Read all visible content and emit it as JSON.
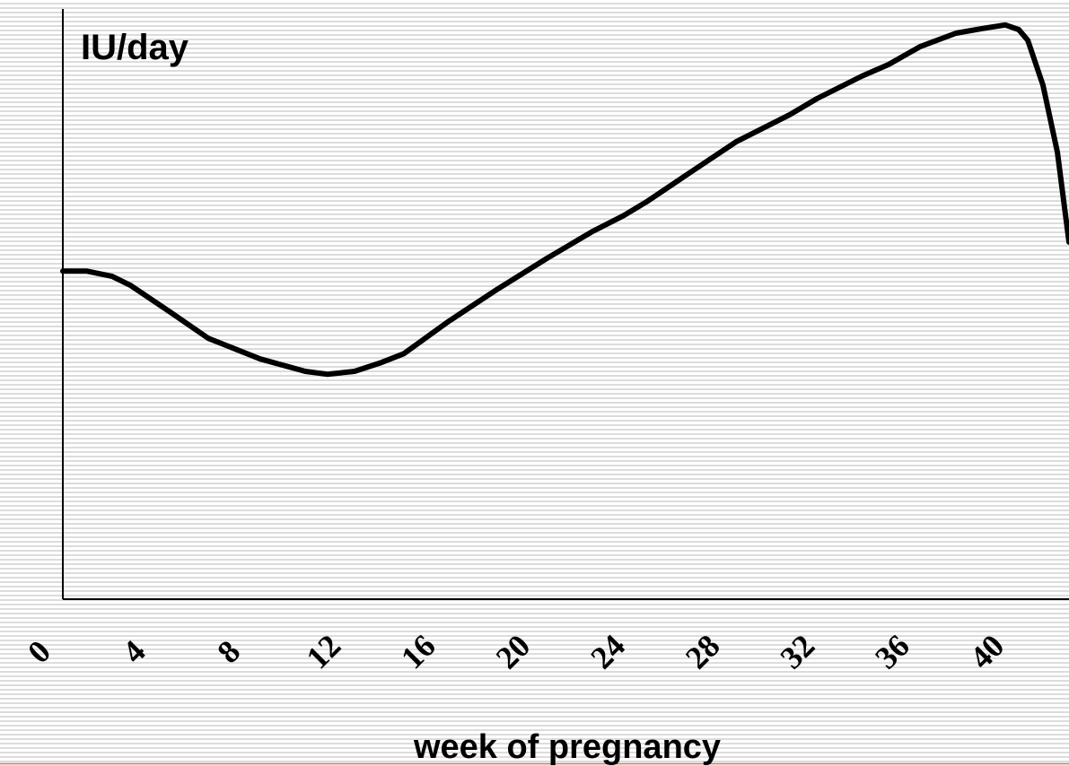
{
  "chart_data": {
    "type": "line",
    "title": "IU/day",
    "x_label": "week of pregnancy",
    "x": [
      0,
      1,
      2.08,
      2.84,
      4.55,
      6.14,
      8.33,
      10.23,
      11.17,
      12.31,
      13.45,
      14.39,
      15.15,
      16.29,
      18.37,
      20.45,
      22.35,
      23.67,
      24.62,
      26.14,
      28.41,
      30.68,
      31.82,
      33.71,
      34.85,
      36.17,
      37.69,
      38.83,
      39.77,
      40.34,
      40.72,
      41.36,
      41.97,
      42.46
    ],
    "values": [
      55.6,
      55.6,
      54.7,
      53.2,
      48.6,
      44.2,
      40.7,
      38.6,
      38.1,
      38.6,
      40.1,
      41.6,
      43.8,
      47.1,
      52.6,
      57.8,
      62.3,
      65.0,
      67.3,
      71.4,
      77.5,
      82.1,
      84.8,
      88.6,
      90.6,
      93.6,
      95.9,
      96.7,
      97.3,
      96.5,
      94.7,
      87.1,
      75.7,
      60.5
    ],
    "color": "#000000",
    "xlim": [
      0,
      42.46
    ],
    "ylim": [
      0,
      100
    ],
    "xticks": [
      0,
      4,
      8,
      12,
      16,
      20,
      24,
      28,
      32,
      36,
      40
    ]
  }
}
